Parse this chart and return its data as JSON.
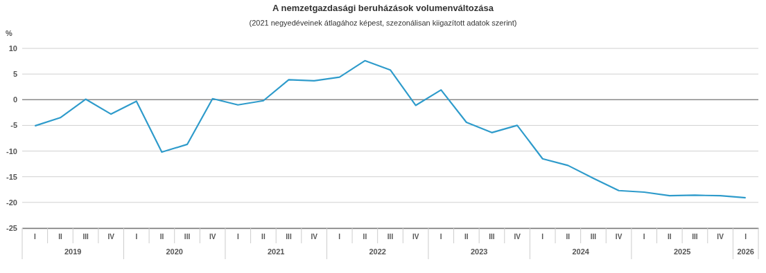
{
  "chart_data": {
    "type": "line",
    "title": "A nemzetgazdasági beruházások volumenváltozása",
    "subtitle": "(2021 negyedéveinek átlagához képest, szezonálisan kiigazított adatok szerint)",
    "ylabel": "%",
    "categories": [
      "I",
      "II",
      "III",
      "IV",
      "I",
      "II",
      "III",
      "IV",
      "I",
      "II",
      "III",
      "IV",
      "I",
      "II",
      "III",
      "IV",
      "I",
      "II",
      "III",
      "IV",
      "I",
      "II",
      "III",
      "IV",
      "I",
      "II",
      "III",
      "IV",
      "I"
    ],
    "annotations": [
      "2019",
      "2020",
      "2021",
      "2022",
      "2023",
      "2024",
      "2025",
      "2026"
    ],
    "series": [
      {
        "color": "#2e9bcb",
        "values": [
          -5.1,
          -3.5,
          0.1,
          -2.8,
          -0.3,
          -10.2,
          -8.7,
          0.2,
          -1.0,
          -0.2,
          3.9,
          3.7,
          4.4,
          7.6,
          5.8,
          -1.1,
          1.9,
          -4.4,
          -6.4,
          -5.0,
          -11.5,
          -12.8,
          -15.3,
          -17.7,
          -18.0,
          -18.7,
          -18.6,
          -18.7,
          -19.1
        ]
      }
    ],
    "ylim": [
      -25,
      10
    ],
    "yticks": [
      -25,
      -20,
      -15,
      -10,
      -5,
      0,
      5,
      10
    ],
    "grid": "y",
    "marker": "none",
    "line_style": "solid",
    "ref_lines": [
      {
        "axis": "y",
        "value": 0,
        "color": "#8c8c8c"
      }
    ]
  }
}
